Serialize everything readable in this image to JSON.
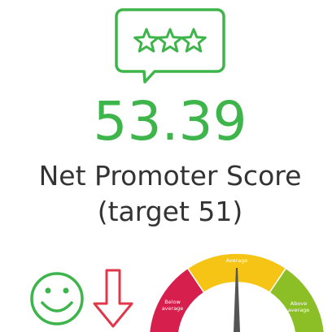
{
  "score": "53.39",
  "title": "Net Promoter Score",
  "target": "(target 51)",
  "gauge": {
    "labels": [
      [
        "Below",
        "average"
      ],
      [
        "Average"
      ],
      [
        "Above",
        "average"
      ]
    ]
  }
}
